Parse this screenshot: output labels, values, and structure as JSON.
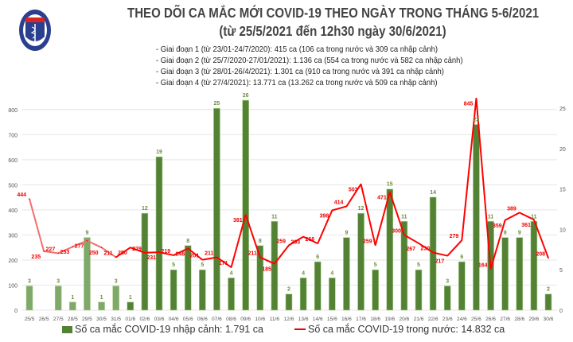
{
  "header": {
    "logo_text": "BỘ Y TẾ",
    "logo_subtext": "MINISTRY OF HEALTH",
    "title": "THEO DÕI CA MẮC MỚI COVID-19 THEO NGÀY TRONG THÁNG 5-6/2021",
    "subtitle": "(từ 25/5/2021 đến 12h30 ngày 30/6/2021)",
    "notes": [
      "- Giai đoạn 1 (từ 23/01-24/7/2020): 415 ca (106 ca trong nước và 309 ca nhập cảnh)",
      "- Giai đoạn 2 (từ 25/7/2020-27/01/2021): 1.136 ca (554 ca trong nước và 582 ca nhập cảnh)",
      "- Giai đoạn 3 (từ 28/01-26/4/2021): 1.301 ca (910 ca trong nước và 391 ca nhập cảnh)",
      "- Giai đoạn 4 (từ 27/4/2021): 13.771 ca (13.262 ca trong nước và 509 ca nhập cảnh)"
    ]
  },
  "chart_data": {
    "type": "bar+line",
    "categories": [
      "25/5",
      "26/5",
      "27/5",
      "28/5",
      "29/5",
      "30/5",
      "31/5",
      "01/6",
      "02/6",
      "03/6",
      "04/6",
      "05/6",
      "06/6",
      "07/6",
      "08/6",
      "09/6",
      "10/6",
      "11/6",
      "12/6",
      "13/6",
      "14/6",
      "15/6",
      "16/6",
      "17/6",
      "18/6",
      "19/6",
      "20/6",
      "21/6",
      "22/6",
      "23/6",
      "24/6",
      "25/6",
      "26/6",
      "27/6",
      "28/6",
      "29/6",
      "30/6"
    ],
    "series": [
      {
        "name": "Số ca mắc COVID-19 nhập cảnh: 1.791 ca",
        "type": "bar",
        "axis": "right",
        "color": "#548235",
        "values": [
          3,
          0,
          3,
          1,
          9,
          1,
          3,
          1,
          12,
          19,
          5,
          8,
          5,
          25,
          4,
          26,
          8,
          11,
          2,
          4,
          6,
          4,
          9,
          12,
          5,
          15,
          11,
          5,
          14,
          3,
          6,
          23,
          11,
          9,
          9,
          11,
          2
        ]
      },
      {
        "name": "Số ca mắc COVID-19 trong nước: 14.832 ca",
        "type": "line",
        "axis": "left",
        "color": "#ff0000",
        "values": [
          444,
          235,
          227,
          253,
          277,
          250,
          211,
          250,
          229,
          231,
          219,
          246,
          201,
          211,
          171,
          381,
          211,
          185,
          259,
          293,
          266,
          398,
          414,
          503,
          259,
          471,
          300,
          267,
          230,
          217,
          279,
          845,
          164,
          359,
          389,
          361,
          208
        ]
      }
    ],
    "left_axis": {
      "ylim": [
        0,
        850
      ],
      "ticks": [
        0,
        100,
        200,
        300,
        400,
        500,
        600,
        700,
        800
      ]
    },
    "right_axis": {
      "ylim": [
        0,
        26.4
      ],
      "ticks": [
        0,
        5,
        10,
        15,
        20,
        25
      ]
    },
    "grid": true,
    "legend": "bottom",
    "faded_first_days": 7
  }
}
